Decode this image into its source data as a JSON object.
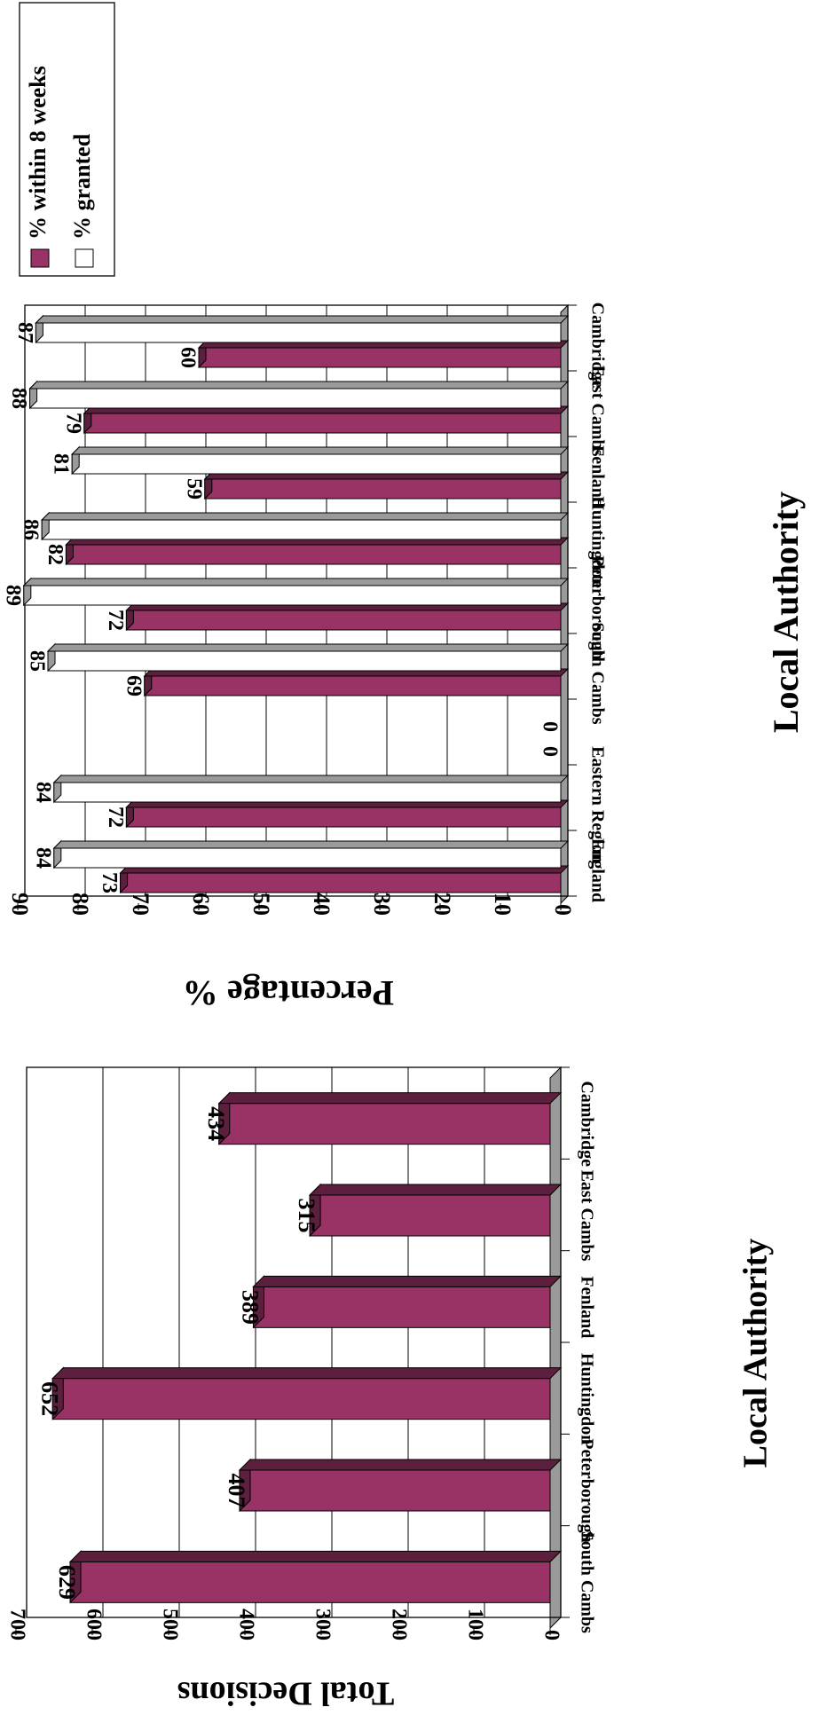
{
  "chart_data": [
    {
      "type": "bar",
      "categories": [
        "Cambridge",
        "East Cambs",
        "Fenland",
        "Huntingdon",
        "Peterborough",
        "South Cambs"
      ],
      "values": [
        434,
        315,
        389,
        652,
        407,
        629
      ],
      "value_labels": [
        "434",
        "315",
        "389",
        "652",
        "407",
        "629"
      ],
      "ylim": [
        0,
        700
      ],
      "yticks": [
        "0",
        "100",
        "200",
        "300",
        "400",
        "500",
        "600",
        "700"
      ],
      "ylabel": "Total Decisions",
      "xlabel": "Local Authority",
      "grid": true,
      "orientation": "rotated 90 degrees clockwise",
      "colors": {
        "bar": "#993366",
        "bar_top": "#5c1f3d",
        "wall": "#9a9a9a"
      }
    },
    {
      "type": "bar",
      "categories": [
        "Cambridge",
        "East Cambs",
        "Fenland",
        "Huntingdon",
        "Peterborough",
        "South Cambs",
        "",
        "Eastern Region",
        "England"
      ],
      "series": [
        {
          "name": "% within 8 weeks",
          "values": [
            60,
            79,
            59,
            82,
            72,
            69,
            0,
            72,
            73
          ],
          "labels": [
            "60",
            "79",
            "59",
            "82",
            "72",
            "69",
            "0",
            "72",
            "73"
          ],
          "color": "#993366"
        },
        {
          "name": "% granted",
          "values": [
            87,
            88,
            81,
            86,
            89,
            85,
            0,
            84,
            84
          ],
          "labels": [
            "87",
            "88",
            "81",
            "86",
            "89",
            "85",
            "0",
            "84",
            "84"
          ],
          "color": "#ffffff"
        }
      ],
      "ylim": [
        0,
        90
      ],
      "yticks": [
        "0",
        "10",
        "20",
        "30",
        "40",
        "50",
        "60",
        "70",
        "80",
        "90"
      ],
      "ylabel": "Percentage %",
      "xlabel": "Local Authority",
      "grid": true,
      "legend": "top-right",
      "orientation": "rotated 90 degrees clockwise"
    }
  ]
}
